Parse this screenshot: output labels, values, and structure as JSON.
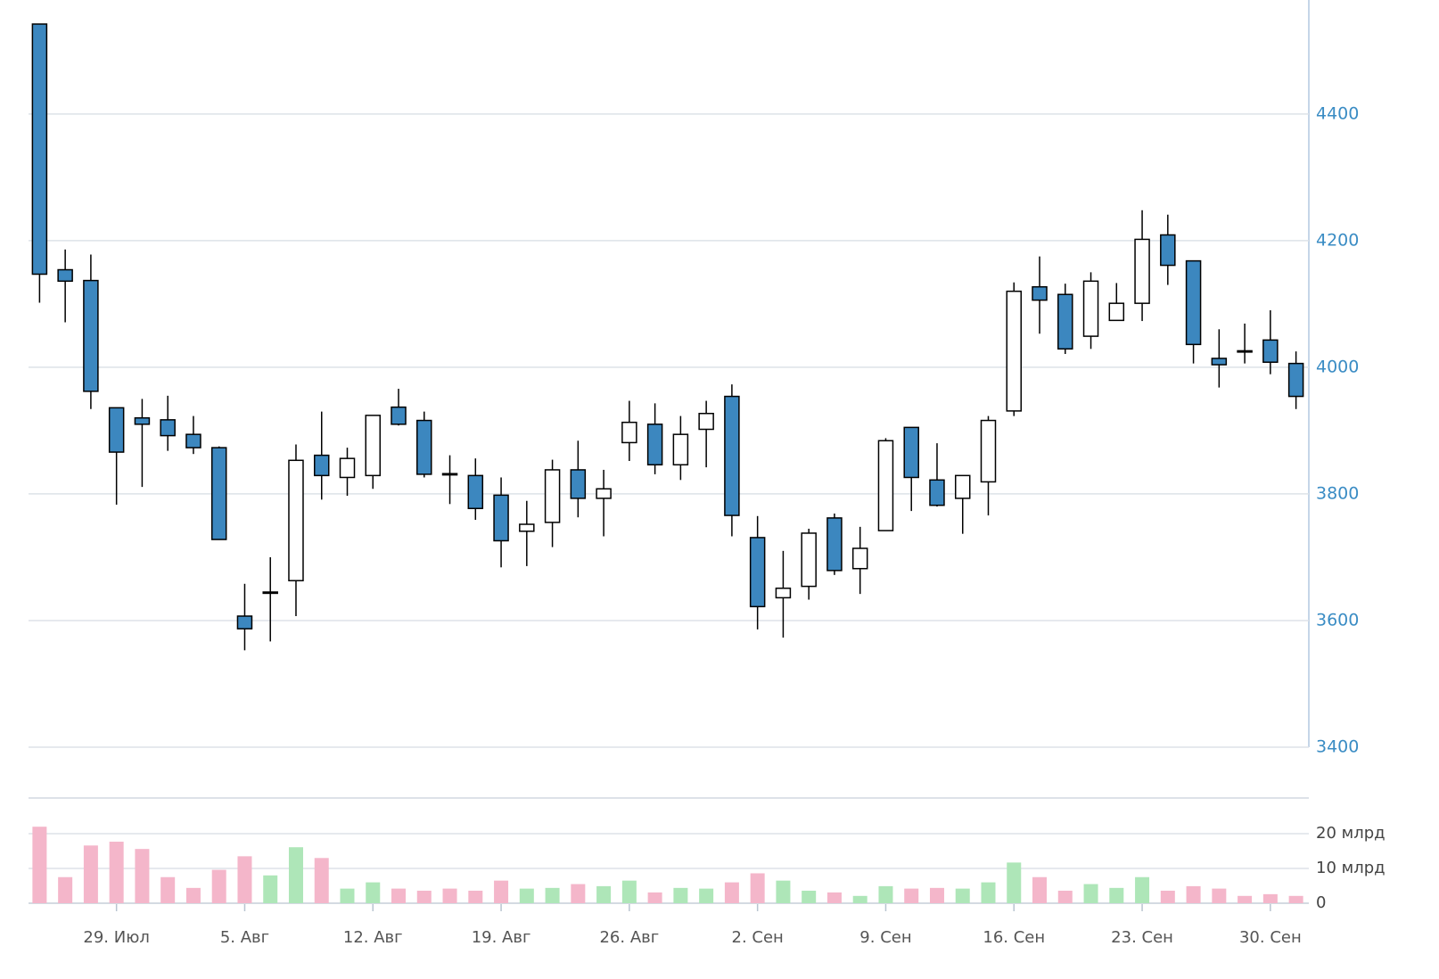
{
  "chart_data": [
    {
      "type": "candlestick",
      "categories": [
        null,
        null,
        null,
        "29. Июл",
        null,
        null,
        null,
        null,
        "5. Авг",
        null,
        null,
        null,
        null,
        "12. Авг",
        null,
        null,
        null,
        null,
        "19. Авг",
        null,
        null,
        null,
        null,
        "26. Авг",
        null,
        null,
        null,
        null,
        "2. Сен",
        null,
        null,
        null,
        null,
        "9. Сен",
        null,
        null,
        null,
        null,
        "16. Сен",
        null,
        null,
        null,
        null,
        "23. Сен",
        null,
        null,
        null,
        null,
        "30. Сен",
        null
      ],
      "open": [
        4542,
        4154,
        4137,
        3936,
        3920,
        3917,
        3894,
        3873,
        3607,
        3643,
        3663,
        3861,
        3826,
        3829,
        3937,
        3916,
        3832,
        3829,
        3798,
        3741,
        3755,
        3838,
        3793,
        3881,
        3910,
        3846,
        3902,
        3954,
        3731,
        3636,
        3654,
        3762,
        3682,
        3742,
        3905,
        3822,
        3793,
        3819,
        3931,
        4127,
        4115,
        4049,
        4074,
        4101,
        4209,
        4168,
        4014,
        4026,
        4043,
        4006
      ],
      "high": [
        4542,
        4186,
        4178,
        3936,
        3950,
        3955,
        3923,
        3875,
        3658,
        3700,
        3878,
        3930,
        3873,
        3924,
        3966,
        3930,
        3861,
        3856,
        3826,
        3789,
        3854,
        3884,
        3838,
        3947,
        3943,
        3923,
        3947,
        3973,
        3765,
        3710,
        3745,
        3769,
        3748,
        3888,
        3905,
        3880,
        3829,
        3923,
        4134,
        4175,
        4132,
        4150,
        4133,
        4248,
        4241,
        4168,
        4060,
        4069,
        4090,
        4025
      ],
      "low": [
        4102,
        4071,
        3934,
        3783,
        3811,
        3868,
        3863,
        3728,
        3553,
        3567,
        3607,
        3791,
        3797,
        3808,
        3908,
        3826,
        3784,
        3759,
        3684,
        3686,
        3716,
        3763,
        3733,
        3852,
        3831,
        3822,
        3842,
        3733,
        3586,
        3573,
        3633,
        3672,
        3642,
        3742,
        3773,
        3780,
        3737,
        3766,
        3923,
        4053,
        4021,
        4029,
        4074,
        4073,
        4130,
        4006,
        3968,
        4006,
        3989,
        3934
      ],
      "close": [
        4147,
        4136,
        3962,
        3866,
        3910,
        3892,
        3873,
        3728,
        3587,
        3645,
        3853,
        3829,
        3856,
        3924,
        3910,
        3831,
        3830,
        3777,
        3726,
        3752,
        3838,
        3793,
        3808,
        3913,
        3846,
        3894,
        3927,
        3766,
        3622,
        3651,
        3738,
        3679,
        3714,
        3884,
        3826,
        3782,
        3829,
        3916,
        4120,
        4106,
        4029,
        4136,
        4101,
        4202,
        4161,
        4036,
        4004,
        4024,
        4008,
        3954
      ],
      "up_color": "#ffffff",
      "down_color": "#3c87bf",
      "ylim": [
        3400,
        4580
      ],
      "yticks": [
        3400,
        3600,
        3800,
        4000,
        4200,
        4400
      ],
      "grid": true
    },
    {
      "type": "bar",
      "values": [
        22,
        7.5,
        16.6,
        17.7,
        15.6,
        7.5,
        4.4,
        9.6,
        13.5,
        8,
        16.1,
        13,
        4.2,
        6,
        4.2,
        3.6,
        4.2,
        3.6,
        6.5,
        4.2,
        4.4,
        5.5,
        4.9,
        6.5,
        3.1,
        4.4,
        4.2,
        6,
        8.6,
        6.5,
        3.6,
        3.1,
        2.1,
        4.9,
        4.2,
        4.4,
        4.2,
        6,
        11.7,
        7.5,
        3.6,
        5.5,
        4.4,
        7.5,
        3.6,
        4.9,
        4.2,
        2.1,
        2.6,
        2.1
      ],
      "up_color": "#aee6b8",
      "down_color": "#f4b6ca",
      "ylim": [
        0,
        30
      ],
      "yticks": [
        0,
        {
          "value": 10,
          "label": "10 млрд"
        },
        {
          "value": 20,
          "label": "20 млрд"
        }
      ],
      "grid": true
    }
  ]
}
